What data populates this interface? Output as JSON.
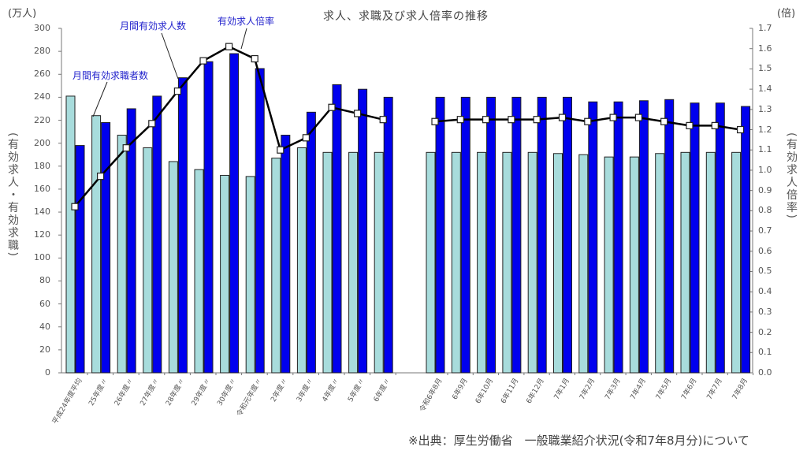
{
  "title": "求人、求職及び求人倍率の推移",
  "left_unit": "(万人)",
  "right_unit": "(倍)",
  "left_axis_label": "(有効求人・有効求職)",
  "right_axis_label": "(有効求人倍率)",
  "annotations": {
    "seekers": "月間有効求職者数",
    "offers": "月間有効求人数",
    "ratio": "有効求人倍率"
  },
  "source": "※出典：厚生労働省　一般職業紹介状況(令和7年8月分)について",
  "colors": {
    "seekers": "#a8dcdc",
    "offers": "#0000ee",
    "ratio": "#000000"
  },
  "left_ticks": [
    "300",
    "280",
    "260",
    "240",
    "220",
    "200",
    "180",
    "160",
    "140",
    "120",
    "100",
    "80",
    "60",
    "40",
    "20",
    "0"
  ],
  "right_ticks": [
    "1.7",
    "1.6",
    "1.5",
    "1.4",
    "1.3",
    "1.2",
    "1.1",
    "1.0",
    "0.9",
    "0.8",
    "0.7",
    "0.6",
    "0.5",
    "0.4",
    "0.3",
    "0.2",
    "0.1",
    "0.0"
  ],
  "chart_data": {
    "type": "bar",
    "title": "求人、求職及び求人倍率の推移",
    "xlabel": "",
    "ylabel": "有効求人・有効求職 (万人)",
    "y2label": "有効求人倍率 (倍)",
    "ylim": [
      0,
      300
    ],
    "y2lim": [
      0.0,
      1.7
    ],
    "grid": false,
    "legend_position": "inline annotations",
    "categories": [
      "平成24年度平均",
      "25年度〃",
      "26年度〃",
      "27年度〃",
      "28年度〃",
      "29年度〃",
      "30年度〃",
      "令和元年度〃",
      "2年度〃",
      "3年度〃",
      "4年度〃",
      "5年度〃",
      "6年度〃",
      "令和6年8月",
      "6年9月",
      "6年10月",
      "6年11月",
      "6年12月",
      "7年1月",
      "7年2月",
      "7年3月",
      "7年4月",
      "7年5月",
      "7年6月",
      "7年7月",
      "7年8月"
    ],
    "series": [
      {
        "name": "月間有効求職者数",
        "type": "bar",
        "axis": "left",
        "values": [
          241,
          224,
          207,
          196,
          184,
          177,
          172,
          171,
          187,
          196,
          192,
          192,
          192,
          192,
          192,
          192,
          192,
          192,
          191,
          190,
          188,
          188,
          191,
          192,
          192,
          192
        ]
      },
      {
        "name": "月間有効求人数",
        "type": "bar",
        "axis": "left",
        "values": [
          198,
          218,
          230,
          241,
          257,
          271,
          278,
          265,
          207,
          227,
          251,
          247,
          240,
          240,
          240,
          240,
          240,
          240,
          240,
          236,
          236,
          237,
          238,
          235,
          235,
          232
        ]
      },
      {
        "name": "有効求人倍率",
        "type": "line",
        "axis": "right",
        "values": [
          0.82,
          0.97,
          1.11,
          1.23,
          1.39,
          1.54,
          1.61,
          1.55,
          1.1,
          1.16,
          1.31,
          1.28,
          1.25,
          1.24,
          1.25,
          1.25,
          1.25,
          1.25,
          1.26,
          1.24,
          1.26,
          1.26,
          1.24,
          1.22,
          1.22,
          1.2
        ]
      }
    ]
  }
}
